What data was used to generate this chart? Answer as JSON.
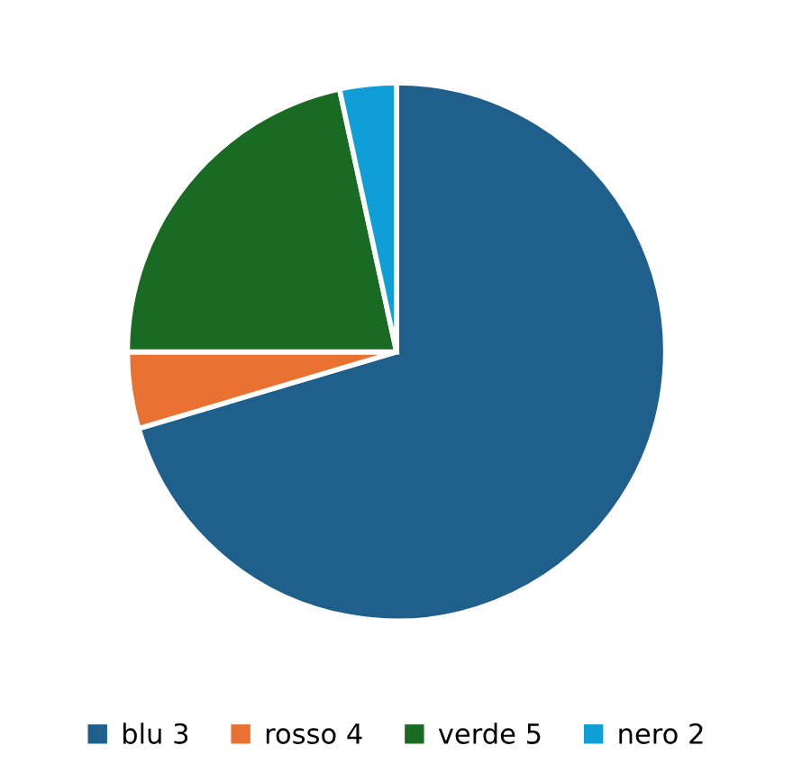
{
  "chart_data": {
    "type": "pie",
    "categories": [
      "blu 3",
      "rosso 4",
      "verde 5",
      "nero 2"
    ],
    "values": [
      70.4,
      4.6,
      21.6,
      3.4
    ],
    "colors": [
      "#1f5f8b",
      "#e97132",
      "#196b24",
      "#0f9ed5"
    ],
    "legend": "bottom"
  }
}
